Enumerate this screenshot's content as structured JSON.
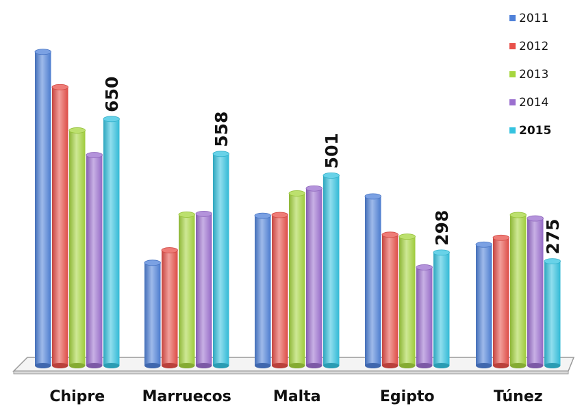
{
  "chart_data": {
    "type": "bar",
    "categories": [
      "Chipre",
      "Marruecos",
      "Malta",
      "Egipto",
      "Túnez"
    ],
    "series": [
      {
        "name": "2011",
        "values": [
          827,
          271,
          395,
          446,
          319
        ]
      },
      {
        "name": "2012",
        "values": [
          734,
          304,
          397,
          345,
          337
        ]
      },
      {
        "name": "2013",
        "values": [
          620,
          398,
          454,
          340,
          397
        ]
      },
      {
        "name": "2014",
        "values": [
          555,
          400,
          467,
          259,
          388
        ]
      },
      {
        "name": "2015",
        "values": [
          650,
          558,
          501,
          298,
          275
        ]
      }
    ],
    "data_labels": [
      {
        "category": "Chipre",
        "series": "2015",
        "text": "650"
      },
      {
        "category": "Marruecos",
        "series": "2015",
        "text": "558"
      },
      {
        "category": "Malta",
        "series": "2015",
        "text": "501"
      },
      {
        "category": "Egipto",
        "series": "2015",
        "text": "298"
      },
      {
        "category": "Túnez",
        "series": "2015",
        "text": "275"
      }
    ],
    "colors": {
      "2011": "#4f81d9",
      "2012": "#e8504a",
      "2013": "#a6d63e",
      "2014": "#9b6fcf",
      "2015": "#35c3e0"
    },
    "legend": {
      "placement": "top-right",
      "items": [
        {
          "label": "2011",
          "bold": false
        },
        {
          "label": "2012",
          "bold": false
        },
        {
          "label": "2013",
          "bold": false
        },
        {
          "label": "2014",
          "bold": false
        },
        {
          "label": "2015",
          "bold": true
        }
      ]
    },
    "ylim": [
      0,
      850
    ],
    "grid": false,
    "title": "",
    "xlabel": "",
    "ylabel": ""
  }
}
